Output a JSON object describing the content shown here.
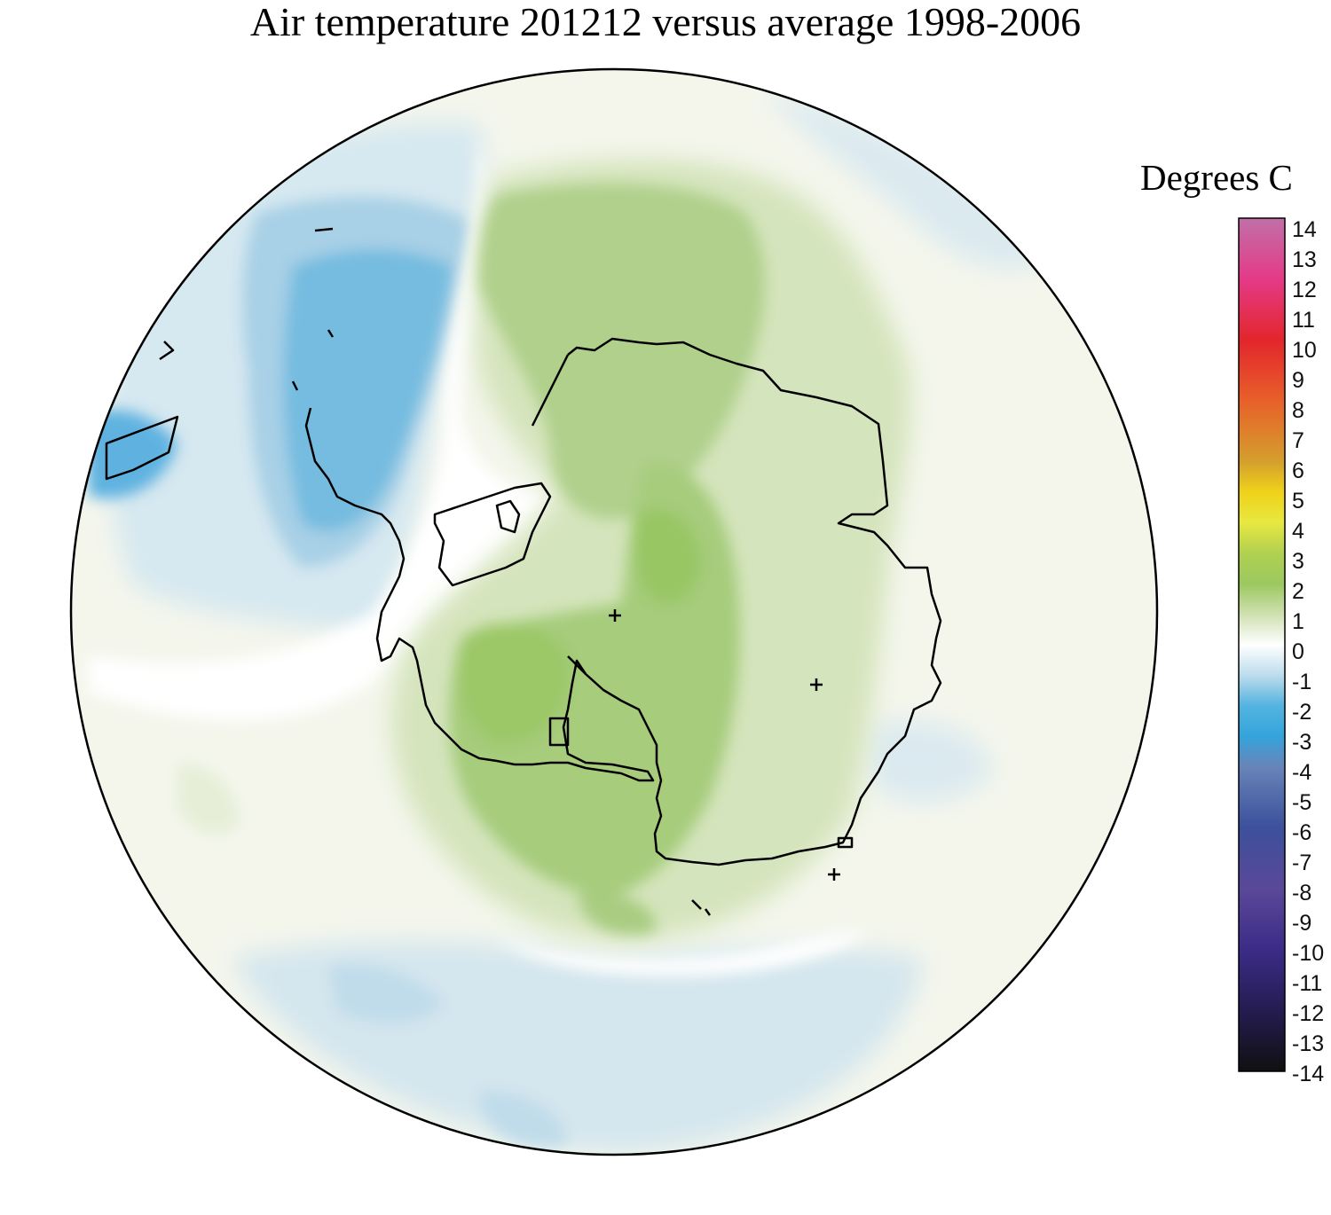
{
  "title": "Air temperature 201212 versus average 1998-2006",
  "legend": {
    "title": "Degrees C",
    "min": -14,
    "max": 14,
    "ticks": [
      "14",
      "13",
      "12",
      "11",
      "10",
      "9",
      "8",
      "7",
      "6",
      "5",
      "4",
      "3",
      "2",
      "1",
      "0",
      "-1",
      "-2",
      "-3",
      "-4",
      "-5",
      "-6",
      "-7",
      "-8",
      "-9",
      "-10",
      "-11",
      "-12",
      "-13",
      "-14"
    ],
    "colors": {
      "14": "#c070a8",
      "12": "#e43a88",
      "10": "#e3262c",
      "8": "#e8602a",
      "6": "#d4a02c",
      "5": "#f0d21a",
      "4": "#e8e840",
      "3": "#b0d050",
      "2": "#9cc860",
      "1": "#cfe0b0",
      "0": "#ffffff",
      "-1": "#bcdcec",
      "-2": "#54b4e0",
      "-3": "#34a4dc",
      "-4": "#6884b8",
      "-6": "#3c509c",
      "-8": "#5a4898",
      "-10": "#3c2c88",
      "-12": "#241c50",
      "-14": "#101010"
    }
  },
  "map": {
    "projection": "south-polar-stereographic",
    "region": "Antarctica",
    "markers": 4
  }
}
